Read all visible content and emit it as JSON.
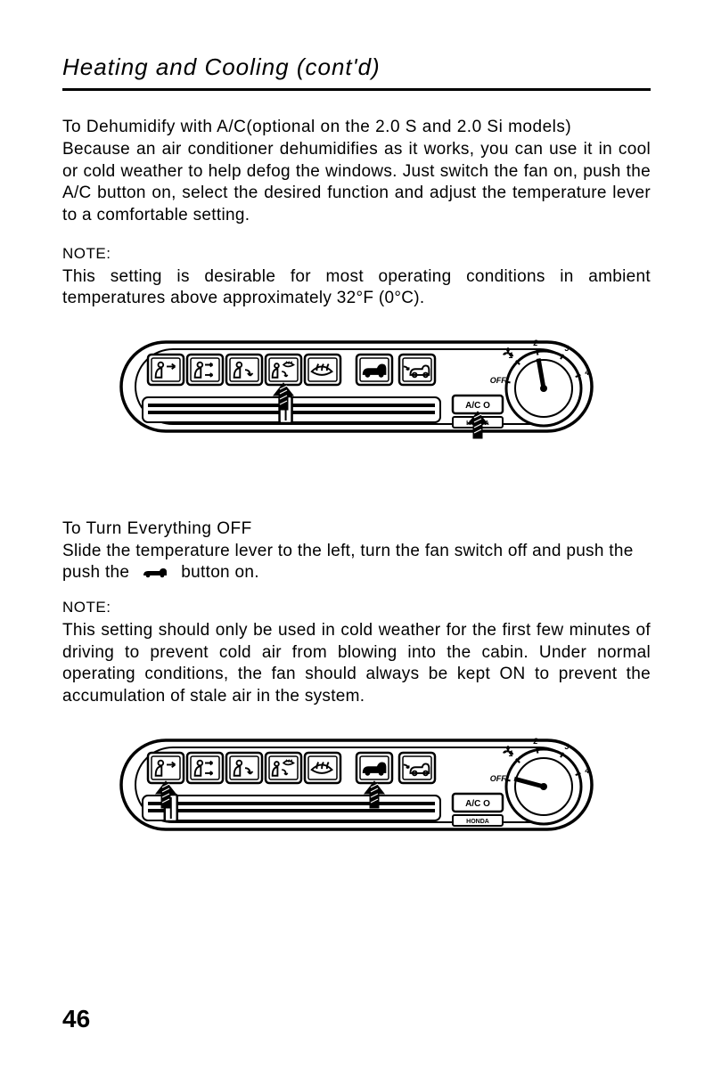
{
  "page": {
    "title": "Heating and Cooling (cont'd)",
    "page_number": "46"
  },
  "section1": {
    "heading": "To Dehumidify with A/C(optional on the 2.0 S and 2.0 Si models)",
    "body": "Because an air conditioner dehumidifies as it works, you can use it in cool or cold weather to help defog the windows. Just switch the fan on, push the A/C button on, select the desired function and adjust the temperature lever to a comfortable setting.",
    "note_label": "NOTE:",
    "note": "This setting is desirable for most operating conditions in ambient temperatures above approximately 32°F (0°C)."
  },
  "section2": {
    "heading": "To Turn Everything OFF",
    "body_pre": "Slide the temperature lever to the left, turn the fan switch off and push the",
    "body_post": "button on.",
    "note_label": "NOTE:",
    "note": "This setting should only be used in cold weather for the first few minutes of driving to prevent cold air from blowing into the cabin. Under normal operating conditions, the fan should always be kept ON to prevent the accumulation of stale air in the system."
  },
  "panel": {
    "fan_labels": [
      "OFF",
      "1",
      "2",
      "3",
      "4"
    ],
    "ac_label": "A/C O",
    "brand_label": "HONDA",
    "buttons": [
      {
        "name": "mode-face",
        "icon": "face"
      },
      {
        "name": "mode-bilevel",
        "icon": "bilevel"
      },
      {
        "name": "mode-floor",
        "icon": "floor"
      },
      {
        "name": "mode-floor-def",
        "icon": "floor-def"
      },
      {
        "name": "mode-defrost",
        "icon": "defrost"
      },
      {
        "name": "recirc",
        "icon": "recirc"
      },
      {
        "name": "fresh",
        "icon": "fresh"
      }
    ]
  },
  "panel1": {
    "arrows_at": [
      3,
      6
    ],
    "knob_pointer_deg": -10,
    "slider_knob_x": 0.48
  },
  "panel2": {
    "arrows_at": [
      0,
      5
    ],
    "knob_pointer_deg": -75,
    "slider_knob_x": 0.08
  },
  "style": {
    "bg": "#ffffff",
    "fg": "#000000",
    "title_fontsize": 26,
    "body_fontsize": 19,
    "note_label_fontsize": 17,
    "pagenum_fontsize": 28,
    "font_family": "Arial, Helvetica, sans-serif",
    "panel_stroke": "#000000",
    "panel_stroke_width": 3
  }
}
